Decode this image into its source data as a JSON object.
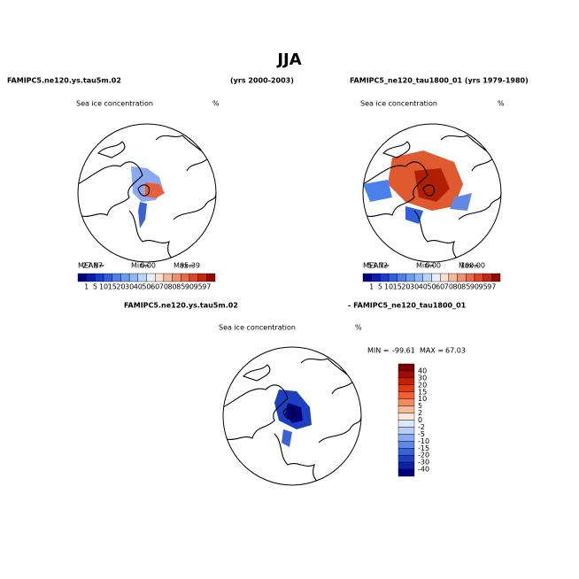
{
  "title": "JJA",
  "panels": [
    {
      "case": "FAMIPC5.ne120.ys.tau5m.02",
      "years": "(yrs 2000-2003)",
      "subtitle": "Sea ice concentration",
      "units": "%",
      "stats": [
        {
          "label": "MEAN=",
          "value": "27.87"
        },
        {
          "label": "Min=",
          "value": "0.00"
        },
        {
          "label": "Max=",
          "value": "95.39"
        }
      ]
    },
    {
      "case": "FAMIPC5_ne120_tau1800_01 (yrs 1979-1980)",
      "subtitle": "Sea ice concentration",
      "units": "%",
      "stats": [
        {
          "label": "MEAN=",
          "value": "53.72"
        },
        {
          "label": "Min=",
          "value": "0.00"
        },
        {
          "label": "Max=",
          "value": "100.00"
        }
      ]
    }
  ],
  "colorbar_levels": [
    "1",
    "5",
    "10",
    "15",
    "20",
    "30",
    "40",
    "50",
    "60",
    "70",
    "80",
    "85",
    "90",
    "95",
    "97"
  ],
  "diff": {
    "case_a": "FAMIPC5.ne120.ys.tau5m.02",
    "case_b": "- FAMIPC5_ne120_tau1800_01",
    "subtitle": "Sea ice concentration",
    "units": "%",
    "min_label": "MIN =",
    "min": "-99.61",
    "max_label": "MAX =",
    "max": "67.03",
    "levels": [
      "40",
      "30",
      "20",
      "15",
      "10",
      "5",
      "2",
      "0",
      "-2",
      "-5",
      "-10",
      "-15",
      "-20",
      "-30",
      "-40"
    ]
  }
}
